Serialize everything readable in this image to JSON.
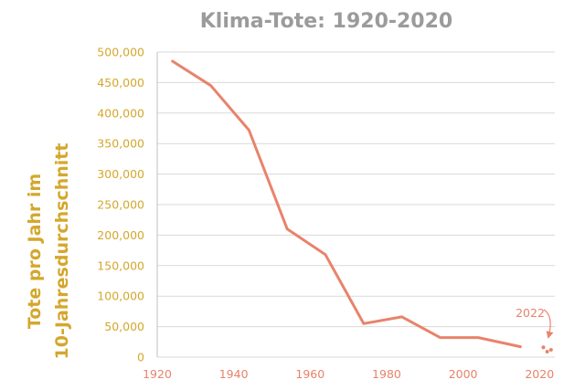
{
  "chart_data": {
    "type": "line",
    "title": "Klima-Tote: 1920-2020",
    "ylabel_lines": [
      "Tote pro Jahr im",
      "10-Jahresdurchschnitt"
    ],
    "xlabel": "",
    "xlim": [
      1920,
      2024
    ],
    "ylim": [
      0,
      500000
    ],
    "x_ticks": [
      "1920",
      "1940",
      "1960",
      "1980",
      "2000",
      "2020"
    ],
    "y_ticks": [
      "0",
      "50,000",
      "100,000",
      "150,000",
      "200,000",
      "250,000",
      "300,000",
      "350,000",
      "400,000",
      "450,000",
      "500,000"
    ],
    "grid": "horizontal",
    "series": [
      {
        "x": [
          1924,
          1934,
          1944,
          1954,
          1964,
          1974,
          1984,
          1994,
          2004,
          2015
        ],
        "y": [
          485000,
          445000,
          372000,
          210000,
          168000,
          55000,
          66000,
          32000,
          32000,
          17000
        ]
      }
    ],
    "annotation": {
      "text": "2022",
      "dots": [
        {
          "x": 2021,
          "y": 16000
        },
        {
          "x": 2022,
          "y": 9000
        },
        {
          "x": 2023,
          "y": 12000
        }
      ]
    },
    "colors": {
      "line": "#e8836b",
      "y_axis_text": "#d4a72c",
      "x_axis_text": "#e8836b",
      "title": "#9b9b9b",
      "grid": "#d9d9d9"
    }
  }
}
